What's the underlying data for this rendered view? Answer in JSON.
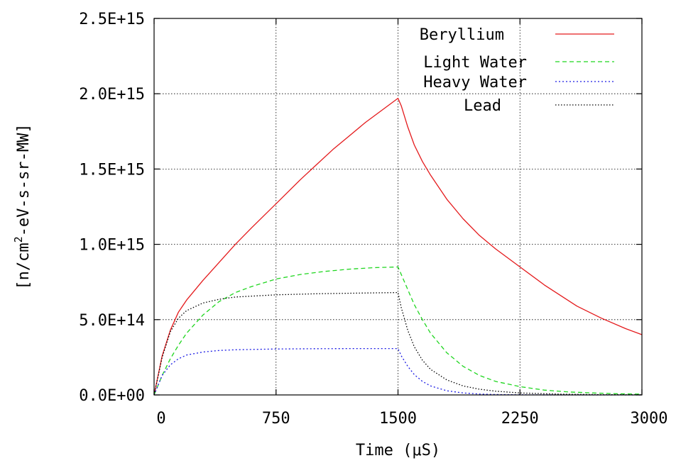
{
  "chart_data": {
    "type": "line",
    "xlabel": "Time (μS)",
    "ylabel_prefix": "[n/cm",
    "ylabel_sup": "2",
    "ylabel_suffix": "-eV-s-sr-MW]",
    "xlim": [
      0,
      3000
    ],
    "ylim": [
      0,
      2500000000000000.0
    ],
    "x_ticks": [
      0,
      750,
      1500,
      2250,
      3000
    ],
    "x_tick_labels": [
      "0",
      "750",
      "1500",
      "2250",
      "3000"
    ],
    "y_ticks": [
      0,
      500000000000000.0,
      1000000000000000.0,
      1500000000000000.0,
      2000000000000000.0,
      2500000000000000.0
    ],
    "y_tick_labels": [
      "0.0E+00",
      "5.0E+14",
      "1.0E+15",
      "1.5E+15",
      "2.0E+15",
      "2.5E+15"
    ],
    "grid": true,
    "legend_position": "top-right",
    "series": [
      {
        "name": "Beryllium",
        "color": "#e41a1c",
        "dash": "solid",
        "x": [
          0,
          50,
          100,
          150,
          200,
          300,
          400,
          500,
          600,
          750,
          900,
          1000,
          1100,
          1200,
          1300,
          1400,
          1500,
          1520,
          1560,
          1600,
          1650,
          1700,
          1800,
          1900,
          2000,
          2100,
          2250,
          2400,
          2500,
          2600,
          2750,
          2900,
          3000
        ],
        "values": [
          0,
          260000000000000.0,
          430000000000000.0,
          550000000000000.0,
          630000000000000.0,
          760000000000000.0,
          880000000000000.0,
          1000000000000000.0,
          1110000000000000.0,
          1270000000000000.0,
          1430000000000000.0,
          1530000000000000.0,
          1630000000000000.0,
          1720000000000000.0,
          1810000000000000.0,
          1890000000000000.0,
          1970000000000000.0,
          1920000000000000.0,
          1780000000000000.0,
          1660000000000000.0,
          1550000000000000.0,
          1460000000000000.0,
          1300000000000000.0,
          1170000000000000.0,
          1060000000000000.0,
          970000000000000.0,
          850000000000000.0,
          730000000000000.0,
          660000000000000.0,
          590000000000000.0,
          510000000000000.0,
          440000000000000.0,
          400000000000000.0
        ]
      },
      {
        "name": "Light Water",
        "color": "#1fd61f",
        "dash": "6 4",
        "x": [
          0,
          50,
          100,
          150,
          200,
          300,
          400,
          500,
          600,
          750,
          900,
          1050,
          1200,
          1350,
          1500,
          1520,
          1560,
          1600,
          1650,
          1700,
          1800,
          1900,
          2000,
          2100,
          2250,
          2400,
          2550,
          2700,
          2850,
          3000
        ],
        "values": [
          0,
          130000000000000.0,
          240000000000000.0,
          330000000000000.0,
          410000000000000.0,
          530000000000000.0,
          620000000000000.0,
          680000000000000.0,
          720000000000000.0,
          770000000000000.0,
          800000000000000.0,
          820000000000000.0,
          835000000000000.0,
          845000000000000.0,
          850000000000000.0,
          800000000000000.0,
          700000000000000.0,
          600000000000000.0,
          500000000000000.0,
          410000000000000.0,
          280000000000000.0,
          190000000000000.0,
          130000000000000.0,
          90000000000000.0,
          55000000000000.0,
          32000000000000.0,
          20000000000000.0,
          13000000000000.0,
          8000000000000.0,
          5000000000000.0
        ]
      },
      {
        "name": "Heavy Water",
        "color": "#1a1ae4",
        "dash": "2 3",
        "x": [
          0,
          50,
          100,
          150,
          200,
          300,
          400,
          500,
          750,
          1000,
          1250,
          1500,
          1520,
          1560,
          1600,
          1650,
          1700,
          1800,
          1900,
          2000,
          2100,
          2250,
          2500,
          3000
        ],
        "values": [
          0,
          130000000000000.0,
          200000000000000.0,
          240000000000000.0,
          265000000000000.0,
          285000000000000.0,
          295000000000000.0,
          300000000000000.0,
          305000000000000.0,
          307000000000000.0,
          308000000000000.0,
          308000000000000.0,
          260000000000000.0,
          190000000000000.0,
          135000000000000.0,
          90000000000000.0,
          60000000000000.0,
          28000000000000.0,
          13000000000000.0,
          6000000000000.0,
          3000000000000.0,
          1000000000000.0,
          0,
          0
        ]
      },
      {
        "name": "Lead",
        "color": "#000000",
        "dash": "1.5 2.5",
        "x": [
          0,
          50,
          100,
          150,
          200,
          300,
          400,
          500,
          750,
          1000,
          1250,
          1500,
          1520,
          1560,
          1600,
          1650,
          1700,
          1800,
          1900,
          2000,
          2100,
          2250,
          2500,
          2750,
          3000
        ],
        "values": [
          0,
          250000000000000.0,
          420000000000000.0,
          510000000000000.0,
          560000000000000.0,
          610000000000000.0,
          635000000000000.0,
          650000000000000.0,
          665000000000000.0,
          672000000000000.0,
          676000000000000.0,
          680000000000000.0,
          580000000000000.0,
          430000000000000.0,
          320000000000000.0,
          230000000000000.0,
          170000000000000.0,
          100000000000000.0,
          60000000000000.0,
          38000000000000.0,
          25000000000000.0,
          13000000000000.0,
          5000000000000.0,
          2000000000000.0,
          1000000000000.0
        ]
      }
    ]
  }
}
